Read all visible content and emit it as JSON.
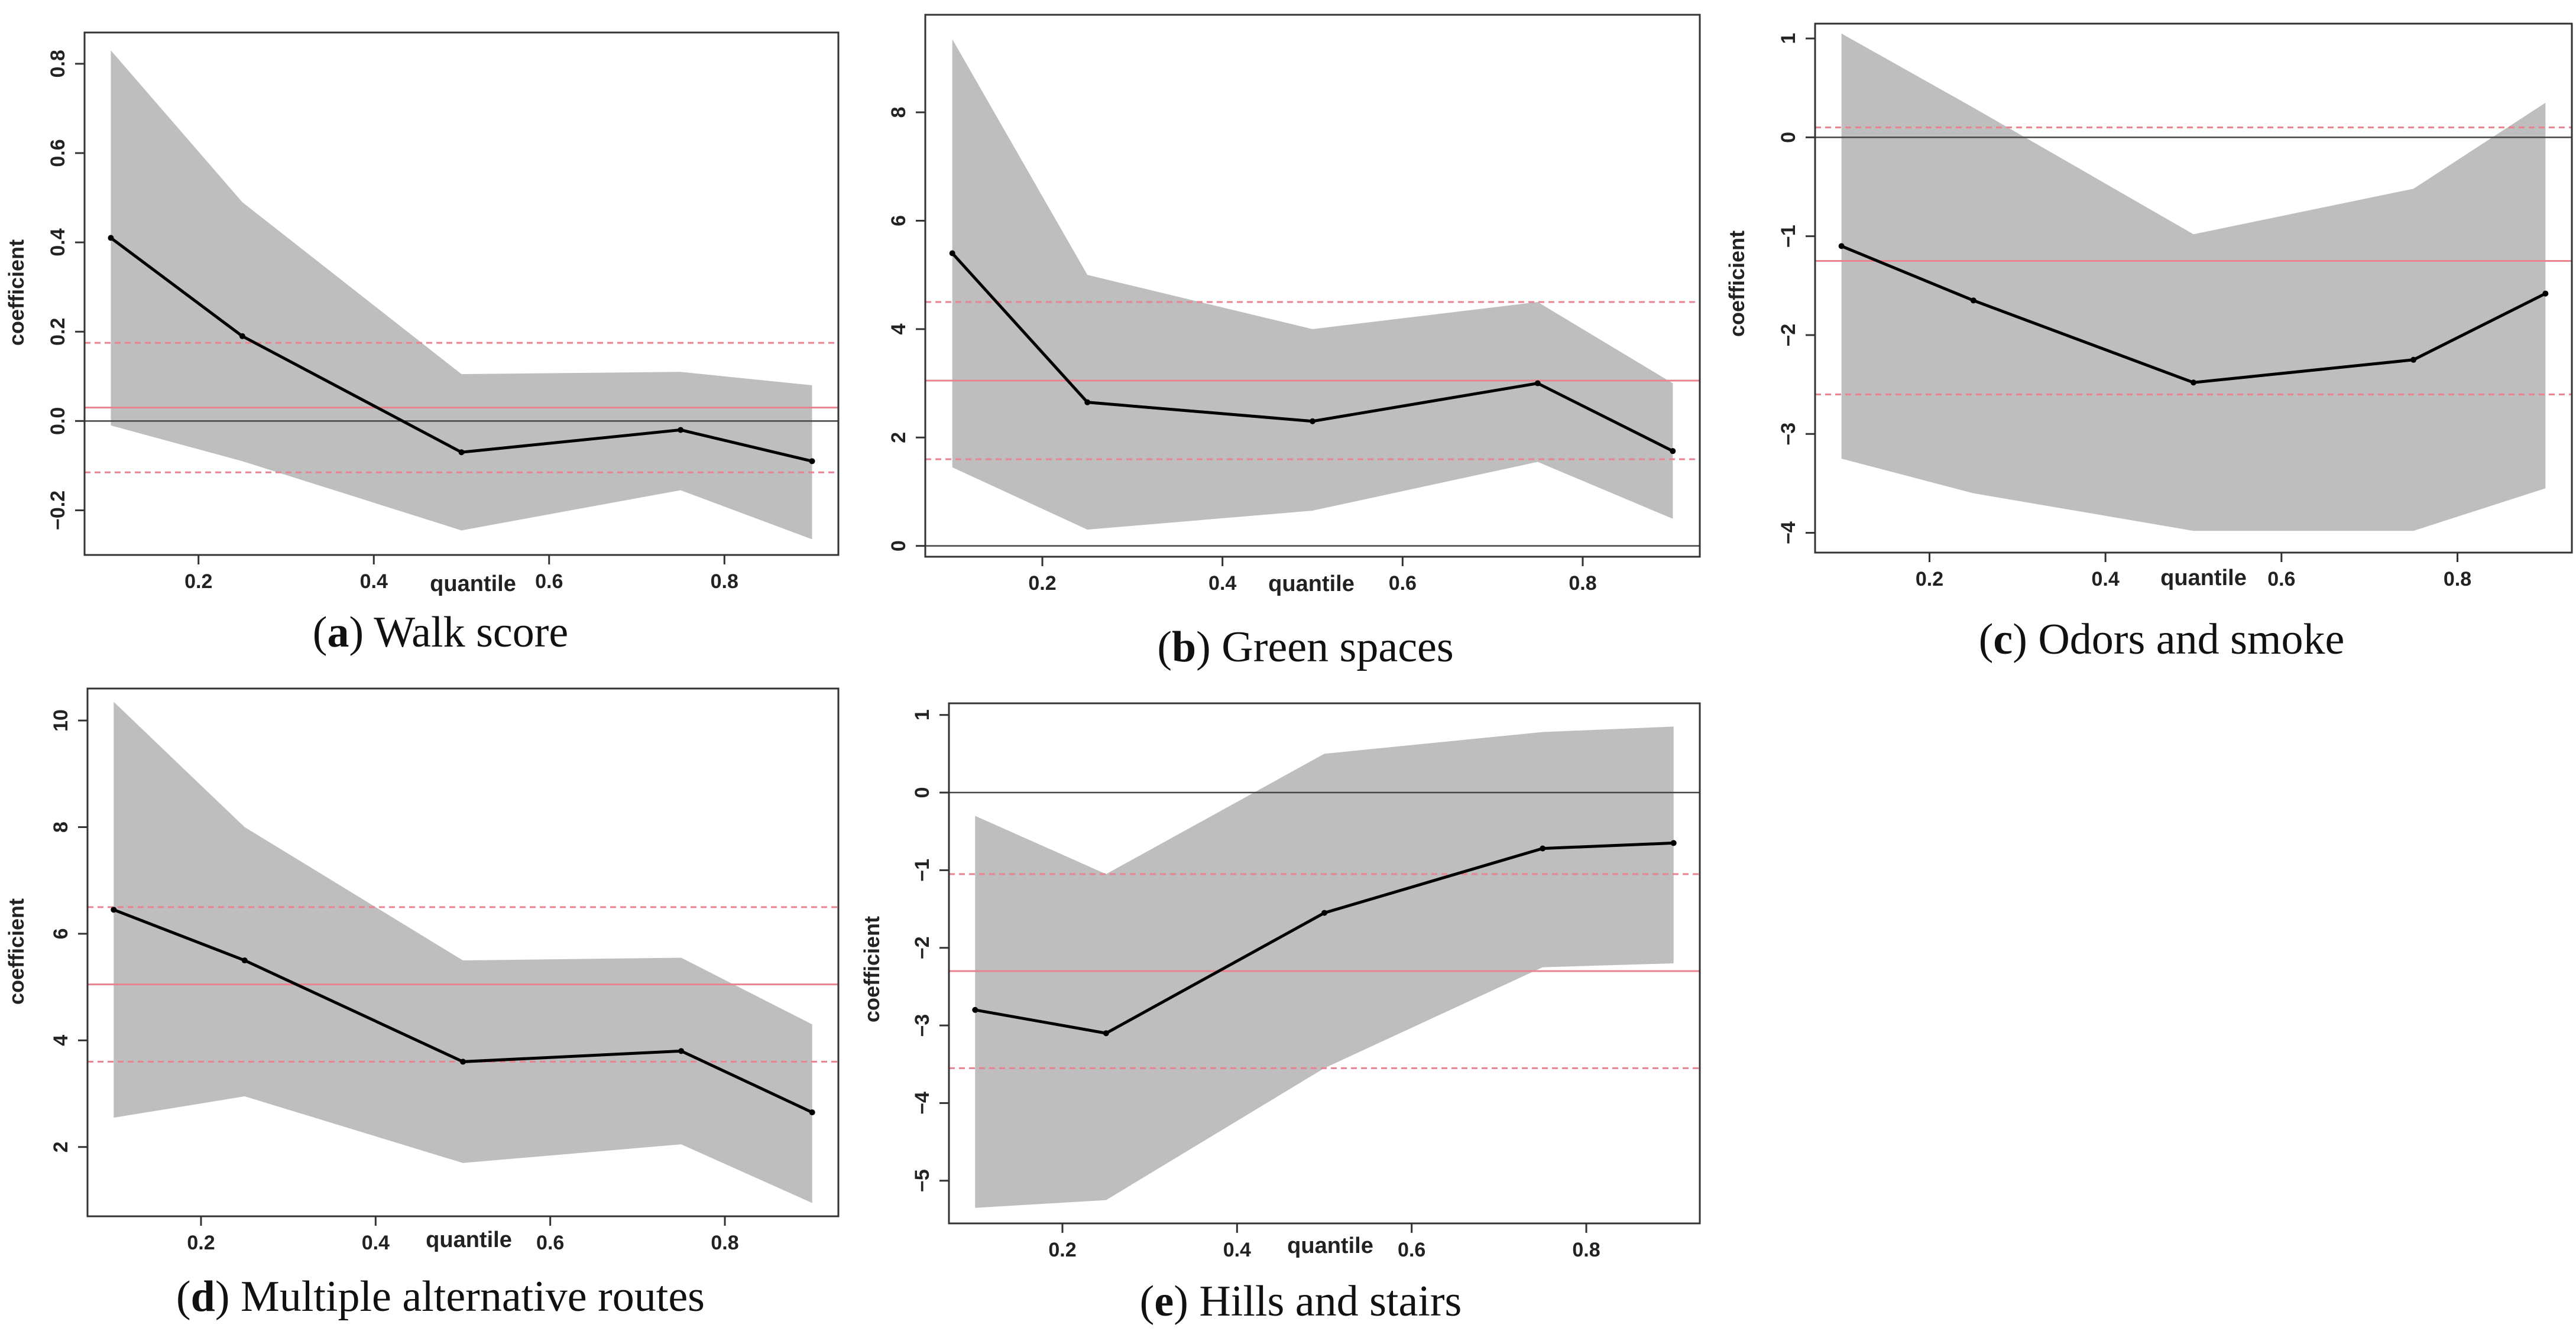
{
  "chart_data": [
    {
      "type": "line",
      "panel_letter": "a",
      "caption": "Walk score",
      "xlabel": "quantile",
      "ylabel": "coefficient",
      "xlim": [
        0.07,
        0.93
      ],
      "ylim": [
        -0.3,
        0.87
      ],
      "xticks": [
        0.2,
        0.4,
        0.6,
        0.8
      ],
      "xtick_labels": [
        "0.2",
        "0.4",
        "0.6",
        "0.8"
      ],
      "yticks": [
        -0.2,
        0.0,
        0.2,
        0.4,
        0.6,
        0.8
      ],
      "ytick_labels": [
        "−0.2",
        "0.0",
        "0.2",
        "0.4",
        "0.6",
        "0.8"
      ],
      "x": [
        0.1,
        0.25,
        0.5,
        0.75,
        0.9
      ],
      "series": [
        {
          "name": "quantile regression estimate",
          "values": [
            0.41,
            0.19,
            -0.07,
            -0.02,
            -0.09
          ]
        }
      ],
      "ci_upper": [
        0.83,
        0.49,
        0.105,
        0.11,
        0.08
      ],
      "ci_lower": [
        -0.01,
        -0.09,
        -0.245,
        -0.155,
        -0.265
      ],
      "ols_estimate": 0.03,
      "ols_ci": [
        -0.115,
        0.175
      ],
      "zero_line": true
    },
    {
      "type": "line",
      "panel_letter": "b",
      "caption": "Green spaces",
      "xlabel": "quantile",
      "ylabel": "",
      "xlim": [
        0.07,
        0.93
      ],
      "ylim": [
        -0.2,
        9.8
      ],
      "xticks": [
        0.2,
        0.4,
        0.6,
        0.8
      ],
      "xtick_labels": [
        "0.2",
        "0.4",
        "0.6",
        "0.8"
      ],
      "yticks": [
        0,
        2,
        4,
        6,
        8
      ],
      "ytick_labels": [
        "0",
        "2",
        "4",
        "6",
        "8"
      ],
      "x": [
        0.1,
        0.25,
        0.5,
        0.75,
        0.9
      ],
      "series": [
        {
          "name": "quantile regression estimate",
          "values": [
            5.4,
            2.65,
            2.3,
            3.0,
            1.75
          ]
        }
      ],
      "ci_upper": [
        9.35,
        5.0,
        4.0,
        4.5,
        3.0
      ],
      "ci_lower": [
        1.45,
        0.3,
        0.65,
        1.55,
        0.5
      ],
      "ols_estimate": 3.05,
      "ols_ci": [
        1.6,
        4.5
      ],
      "zero_line": true
    },
    {
      "type": "line",
      "panel_letter": "c",
      "caption": "Odors and smoke",
      "xlabel": "quantile",
      "ylabel": "coefficient",
      "xlim": [
        0.07,
        0.93
      ],
      "ylim": [
        -4.2,
        1.15
      ],
      "xticks": [
        0.2,
        0.4,
        0.6,
        0.8
      ],
      "xtick_labels": [
        "0.2",
        "0.4",
        "0.6",
        "0.8"
      ],
      "yticks": [
        -4,
        -3,
        -2,
        -1,
        0,
        1
      ],
      "ytick_labels": [
        "−4",
        "−3",
        "−2",
        "−1",
        "0",
        "1"
      ],
      "x": [
        0.1,
        0.25,
        0.5,
        0.75,
        0.9
      ],
      "series": [
        {
          "name": "quantile regression estimate",
          "values": [
            -1.1,
            -1.65,
            -2.48,
            -2.25,
            -1.58
          ]
        }
      ],
      "ci_upper": [
        1.05,
        0.3,
        -0.98,
        -0.52,
        0.35
      ],
      "ci_lower": [
        -3.25,
        -3.6,
        -3.98,
        -3.98,
        -3.55
      ],
      "ols_estimate": -1.25,
      "ols_ci": [
        -2.6,
        0.1
      ],
      "zero_line": true
    },
    {
      "type": "line",
      "panel_letter": "d",
      "caption": "Multiple alternative routes",
      "xlabel": "quantile",
      "ylabel": "coefficient",
      "xlim": [
        0.07,
        0.93
      ],
      "ylim": [
        0.7,
        10.6
      ],
      "xticks": [
        0.2,
        0.4,
        0.6,
        0.8
      ],
      "xtick_labels": [
        "0.2",
        "0.4",
        "0.6",
        "0.8"
      ],
      "yticks": [
        2,
        4,
        6,
        8,
        10
      ],
      "ytick_labels": [
        "2",
        "4",
        "6",
        "8",
        "10"
      ],
      "x": [
        0.1,
        0.25,
        0.5,
        0.75,
        0.9
      ],
      "series": [
        {
          "name": "quantile regression estimate",
          "values": [
            6.45,
            5.5,
            3.6,
            3.8,
            2.65
          ]
        }
      ],
      "ci_upper": [
        10.35,
        8.0,
        5.5,
        5.55,
        4.3
      ],
      "ci_lower": [
        2.55,
        2.95,
        1.7,
        2.05,
        0.95
      ],
      "ols_estimate": 5.05,
      "ols_ci": [
        3.6,
        6.5
      ],
      "zero_line": false
    },
    {
      "type": "line",
      "panel_letter": "e",
      "caption": "Hills and stairs",
      "xlabel": "quantile",
      "ylabel": "coefficient",
      "xlim": [
        0.07,
        0.93
      ],
      "ylim": [
        -5.55,
        1.15
      ],
      "xticks": [
        0.2,
        0.4,
        0.6,
        0.8
      ],
      "xtick_labels": [
        "0.2",
        "0.4",
        "0.6",
        "0.8"
      ],
      "yticks": [
        -5,
        -4,
        -3,
        -2,
        -1,
        0,
        1
      ],
      "ytick_labels": [
        "−5",
        "−4",
        "−3",
        "−2",
        "−1",
        "0",
        "1"
      ],
      "x": [
        0.1,
        0.25,
        0.5,
        0.75,
        0.9
      ],
      "series": [
        {
          "name": "quantile regression estimate",
          "values": [
            -2.8,
            -3.1,
            -1.55,
            -0.72,
            -0.65
          ]
        }
      ],
      "ci_upper": [
        -0.3,
        -1.05,
        0.5,
        0.78,
        0.85
      ],
      "ci_lower": [
        -5.35,
        -5.25,
        -3.55,
        -2.25,
        -2.2
      ],
      "ols_estimate": -2.3,
      "ols_ci": [
        -3.55,
        -1.05
      ],
      "zero_line": true
    }
  ],
  "colors": {
    "ci_band": "#bebebe",
    "estimate_line": "#000000",
    "ols_line": "#e8838f",
    "zero_line": "#444444",
    "axis": "#333333"
  }
}
